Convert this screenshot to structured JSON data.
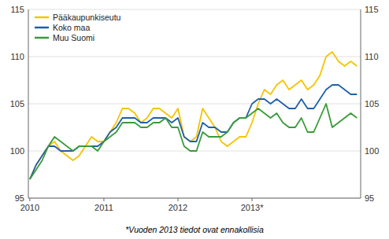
{
  "chart_data": {
    "type": "line",
    "footnote": "*Vuoden 2013 tiedot ovat ennakollisia",
    "x": [
      2010,
      2010.0833333333,
      2010.1666666667,
      2010.25,
      2010.3333333333,
      2010.4166666667,
      2010.5,
      2010.5833333333,
      2010.6666666667,
      2010.75,
      2010.8333333333,
      2010.9166666667,
      2011,
      2011.0833333333,
      2011.1666666667,
      2011.25,
      2011.3333333333,
      2011.4166666667,
      2011.5,
      2011.5833333333,
      2011.6666666667,
      2011.75,
      2011.8333333333,
      2011.9166666667,
      2012,
      2012.0833333333,
      2012.1666666667,
      2012.25,
      2012.3333333333,
      2012.4166666667,
      2012.5,
      2012.5833333333,
      2012.6666666667,
      2012.75,
      2012.8333333333,
      2012.9166666667,
      2013,
      2013.0833333333,
      2013.1666666667,
      2013.25,
      2013.3333333333,
      2013.4166666667,
      2013.5,
      2013.5833333333,
      2013.6666666667,
      2013.75,
      2013.8333333333,
      2013.9166666667,
      2014,
      2014.0833333333,
      2014.1666666667,
      2014.25,
      2014.3333333333,
      2014.4166666667
    ],
    "xlim": [
      2009.98,
      2014.4666666667
    ],
    "xticks": [
      2010,
      2011,
      2012,
      {
        "value": 2013,
        "label": "2013*"
      }
    ],
    "ylim": [
      95,
      115
    ],
    "yticks": [
      95,
      100,
      105,
      110,
      115
    ],
    "y2lim": [
      95,
      115
    ],
    "y2ticks": [
      95,
      100,
      105,
      110,
      115
    ],
    "grid": true,
    "legend": "upper-left",
    "series": [
      {
        "name": "Pääkaupunkiseutu",
        "color": "#f5c400",
        "values": [
          97.0,
          98.5,
          99.5,
          100.5,
          101.0,
          100.0,
          99.5,
          99.0,
          99.5,
          100.5,
          101.5,
          101.0,
          101.0,
          102.0,
          103.0,
          104.5,
          104.5,
          104.0,
          103.0,
          103.5,
          104.5,
          104.5,
          104.0,
          103.5,
          104.5,
          101.5,
          101.0,
          101.5,
          104.5,
          103.5,
          102.5,
          101.0,
          100.5,
          101.0,
          101.5,
          101.5,
          103.0,
          105.0,
          106.5,
          106.0,
          107.0,
          107.5,
          106.5,
          107.0,
          107.5,
          106.5,
          107.0,
          108.0,
          110.0,
          110.5,
          109.5,
          109.0,
          109.5,
          109.0
        ]
      },
      {
        "name": "Koko maa",
        "color": "#1f5faa",
        "values": [
          97.0,
          98.5,
          99.5,
          100.5,
          100.5,
          100.0,
          100.0,
          100.0,
          100.5,
          100.5,
          100.5,
          100.5,
          101.0,
          102.0,
          102.5,
          103.5,
          103.5,
          103.5,
          103.0,
          103.0,
          103.5,
          103.5,
          103.5,
          103.0,
          103.5,
          101.5,
          101.0,
          101.0,
          103.0,
          102.5,
          102.5,
          102.0,
          102.0,
          103.0,
          103.5,
          103.5,
          105.0,
          105.5,
          105.5,
          105.0,
          105.5,
          105.0,
          104.5,
          104.5,
          105.5,
          104.5,
          104.5,
          105.5,
          106.5,
          107.0,
          107.0,
          106.5,
          106.0,
          106.0
        ]
      },
      {
        "name": "Muu Suomi",
        "color": "#3a9a3a",
        "values": [
          97.0,
          98.0,
          99.0,
          100.5,
          101.5,
          101.0,
          100.5,
          100.0,
          100.5,
          100.5,
          100.5,
          100.0,
          101.0,
          101.5,
          102.0,
          103.0,
          103.0,
          103.0,
          102.5,
          102.5,
          103.0,
          103.0,
          103.5,
          102.5,
          102.5,
          100.5,
          100.0,
          100.0,
          102.0,
          101.5,
          101.5,
          101.5,
          102.0,
          103.0,
          103.5,
          103.5,
          104.0,
          104.5,
          104.0,
          103.5,
          104.0,
          103.0,
          102.5,
          102.5,
          103.5,
          102.0,
          102.0,
          103.5,
          105.0,
          102.5,
          103.0,
          103.5,
          104.0,
          103.5
        ]
      }
    ]
  }
}
